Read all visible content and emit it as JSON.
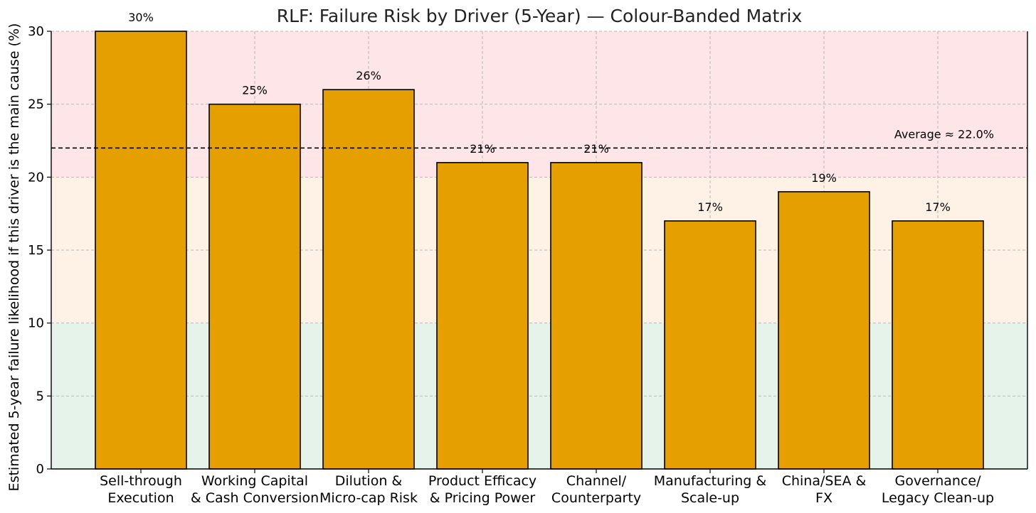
{
  "chart_data": {
    "type": "bar",
    "title": "RLF: Failure Risk by Driver (5-Year) — Colour-Banded Matrix",
    "xlabel": "",
    "ylabel": "Estimated 5-year failure likelihood if this driver is the main cause (%)",
    "ylim": [
      0,
      30
    ],
    "yticks": [
      0,
      5,
      10,
      15,
      20,
      25,
      30
    ],
    "grid": true,
    "categories": [
      [
        "Sell-through",
        "Execution"
      ],
      [
        "Working Capital",
        "& Cash Conversion"
      ],
      [
        "Dilution &",
        "Micro-cap Risk"
      ],
      [
        "Product Efficacy",
        "& Pricing Power"
      ],
      [
        "Channel/",
        "Counterparty"
      ],
      [
        "Manufacturing &",
        "Scale-up"
      ],
      [
        "China/SEA &",
        "FX"
      ],
      [
        "Governance/",
        "Legacy Clean-up"
      ]
    ],
    "values": [
      30,
      25,
      26,
      21,
      21,
      17,
      19,
      17
    ],
    "data_labels": [
      "30%",
      "25%",
      "26%",
      "21%",
      "21%",
      "17%",
      "19%",
      "17%"
    ],
    "bar_color": "#E5A000",
    "bar_edge_color": "#000000",
    "bands": [
      {
        "from": 0,
        "to": 10,
        "color": "#E6F3EA"
      },
      {
        "from": 10,
        "to": 20,
        "color": "#FEF2E6"
      },
      {
        "from": 20,
        "to": 30,
        "color": "#FDE5E8"
      }
    ],
    "average": {
      "value": 22.0,
      "label": "Average ≈ 22.0%"
    }
  }
}
